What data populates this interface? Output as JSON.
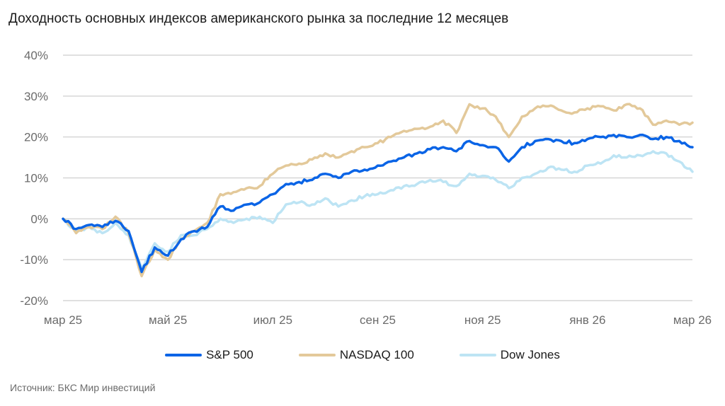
{
  "title": "Доходность основных индексов американского рынка за последние 12 месяцев",
  "source": "Источник: БКС Мир инвестиций",
  "chart_data": {
    "type": "line",
    "title": "Доходность основных индексов американского рынка за последние 12 месяцев",
    "xlabel": "",
    "ylabel": "",
    "ylim": [
      -20,
      40
    ],
    "yticks": [
      40,
      30,
      20,
      10,
      0,
      -10,
      -20
    ],
    "ytick_labels": [
      "40%",
      "30%",
      "20%",
      "10%",
      "0%",
      "-10%",
      "-20%"
    ],
    "xtick_labels": [
      "мар 25",
      "май 25",
      "июл 25",
      "сен 25",
      "ноя 25",
      "янв 26",
      "мар 26"
    ],
    "grid": true,
    "legend_position": "bottom",
    "x": [
      0,
      0.25,
      0.5,
      0.75,
      1,
      1.25,
      1.5,
      1.75,
      2,
      2.25,
      2.5,
      2.75,
      3,
      3.25,
      3.5,
      3.75,
      4,
      4.25,
      4.5,
      4.75,
      5,
      5.25,
      5.5,
      5.75,
      6,
      6.25,
      6.5,
      6.75,
      7,
      7.25,
      7.5,
      7.75,
      8,
      8.25,
      8.5,
      8.75,
      9,
      9.25,
      9.5,
      9.75,
      10,
      10.25,
      10.5,
      10.75,
      11,
      11.25,
      11.5,
      11.75,
      12
    ],
    "series": [
      {
        "name": "S&P 500",
        "color": "#0a64e6",
        "values": [
          0,
          -2.5,
          -1.5,
          -2,
          -0.5,
          -3,
          -13,
          -7,
          -9,
          -5,
          -3,
          -2,
          3,
          2,
          3.5,
          4,
          6,
          8.5,
          9,
          9.5,
          11,
          10,
          11.5,
          12,
          13,
          14,
          15,
          16,
          17,
          17.5,
          16.5,
          19,
          18,
          17.5,
          14,
          17.5,
          19,
          19.5,
          19,
          18.5,
          19.5,
          20,
          20.5,
          20,
          20.5,
          19.5,
          20,
          19,
          17.5
        ]
      },
      {
        "name": "NASDAQ 100",
        "color": "#e3c99a",
        "values": [
          0,
          -3.5,
          -2,
          -2.5,
          0.5,
          -3.5,
          -14,
          -7.5,
          -10,
          -5,
          -3,
          -1,
          6,
          6.5,
          7.5,
          8,
          11,
          13,
          13.5,
          14.5,
          16,
          15,
          16.5,
          17.5,
          18.5,
          20,
          21.5,
          22,
          22.5,
          24,
          21,
          28,
          27,
          25,
          20,
          25,
          27,
          27.5,
          26.5,
          26,
          27,
          27.5,
          26.5,
          28,
          27,
          23,
          24,
          23,
          23.5
        ]
      },
      {
        "name": "Dow Jones",
        "color": "#bde4f4",
        "values": [
          0,
          -3,
          -2,
          -3.5,
          -1,
          -4,
          -12,
          -6,
          -8,
          -4,
          -4,
          -2.5,
          0,
          -1,
          0,
          0.5,
          -1,
          3.5,
          4,
          3.5,
          5,
          3,
          4.5,
          5.5,
          6,
          7,
          8,
          8.5,
          9.5,
          9,
          8,
          11,
          10.5,
          9.5,
          7.5,
          10,
          11,
          12.5,
          12,
          11.5,
          13,
          13.5,
          15.5,
          15,
          15.5,
          16.5,
          16,
          14,
          11.5
        ]
      }
    ]
  }
}
